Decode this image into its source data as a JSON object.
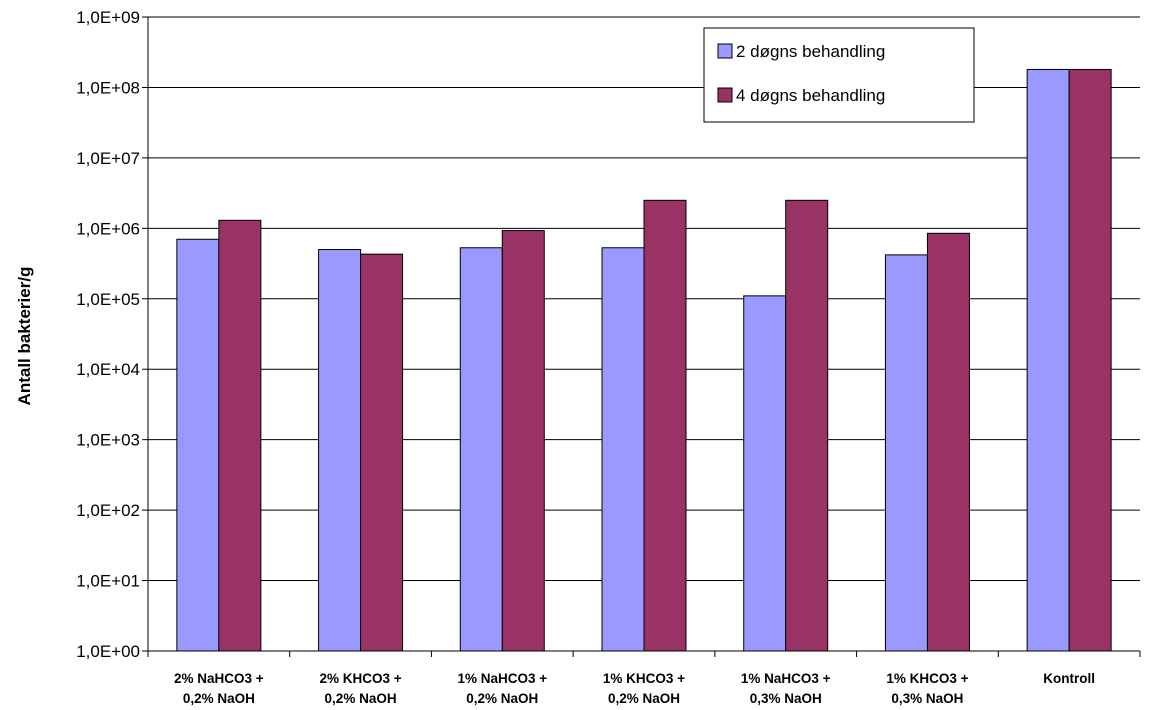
{
  "chart_data": {
    "type": "bar",
    "yscale": "log",
    "ylim": [
      1,
      1000000000
    ],
    "ylabel": "Antall bakterier/g",
    "xlabel": "",
    "yticks": [
      "1,0E+00",
      "1,0E+01",
      "1,0E+02",
      "1,0E+03",
      "1,0E+04",
      "1,0E+05",
      "1,0E+06",
      "1,0E+07",
      "1,0E+08",
      "1,0E+09"
    ],
    "categories": [
      [
        "2% NaHCO3 +",
        "0,2% NaOH"
      ],
      [
        "2% KHCO3 +",
        "0,2% NaOH"
      ],
      [
        "1% NaHCO3 +",
        "0,2% NaOH"
      ],
      [
        "1% KHCO3 +",
        "0,2% NaOH"
      ],
      [
        "1% NaHCO3 +",
        "0,3% NaOH"
      ],
      [
        "1% KHCO3 +",
        "0,3% NaOH"
      ],
      [
        "Kontroll"
      ]
    ],
    "series": [
      {
        "name": "2 døgns behandling",
        "color": "#9999ff",
        "values": [
          700000,
          500000,
          530000,
          530000,
          110000,
          420000,
          180000000
        ]
      },
      {
        "name": "4 døgns behandling",
        "color": "#993366",
        "values": [
          1300000,
          430000,
          930000,
          2500000,
          2500000,
          850000,
          180000000
        ]
      }
    ],
    "grid": true,
    "legend_position": "top-right"
  }
}
